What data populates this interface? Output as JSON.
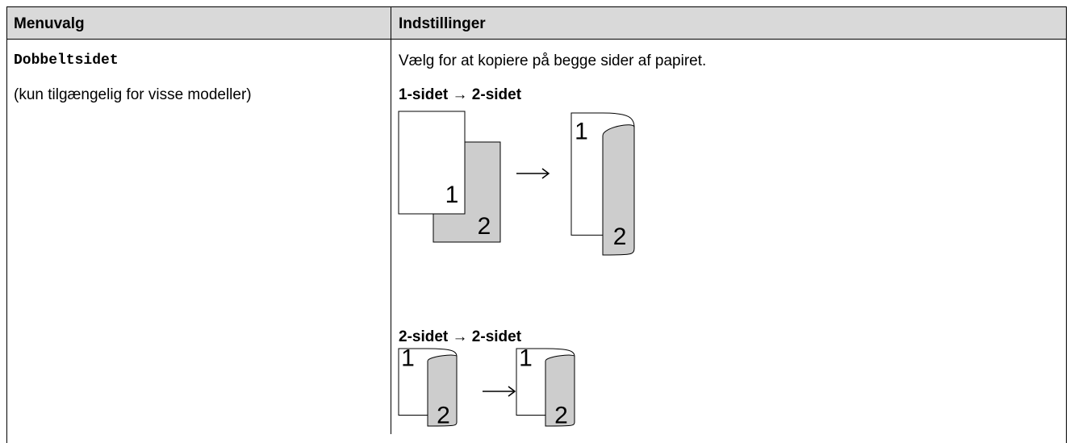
{
  "table": {
    "headers": [
      "Menuvalg",
      "Indstillinger"
    ],
    "rows": [
      [
        {
          "option": "Dobbeltsidet",
          "note": "(kun tilgængelig for visse modeller)"
        },
        {
          "description": "Vælg for at kopiere på begge sider af papiret.",
          "diagrams": [
            {
              "caption": "1-sidet → 2-sidet",
              "source_labels": [
                "1",
                "2"
              ],
              "result_labels": [
                "1",
                "2"
              ]
            },
            {
              "caption": "2-sidet → 2-sidet",
              "source_labels": [
                "1",
                "2"
              ],
              "result_labels": [
                "1",
                "2"
              ]
            }
          ]
        }
      ]
    ]
  }
}
